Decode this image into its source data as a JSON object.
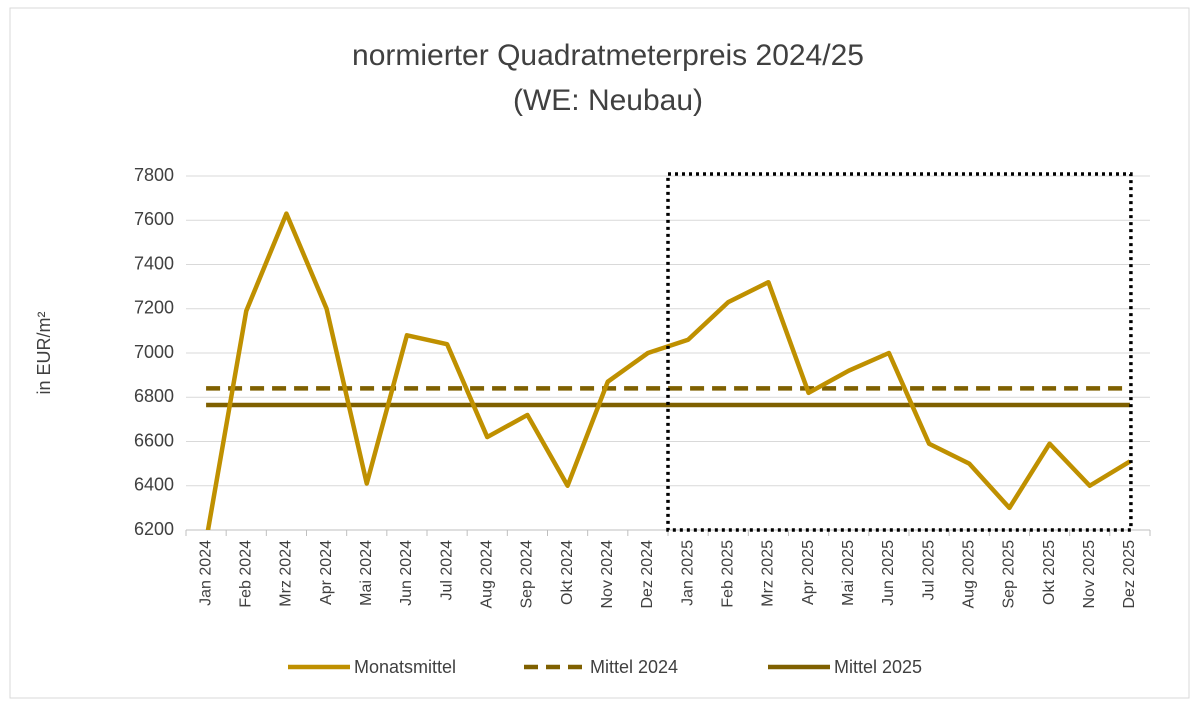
{
  "chart_data": {
    "type": "line",
    "title": "normierter Quadratmeterpreis 2024/25",
    "subtitle": "(WE: Neubau)",
    "y_label": "in EUR/m²",
    "categories": [
      "Jan 2024",
      "Feb 2024",
      "Mrz 2024",
      "Apr 2024",
      "Mai 2024",
      "Jun 2024",
      "Jul 2024",
      "Aug 2024",
      "Sep 2024",
      "Okt 2024",
      "Nov 2024",
      "Dez 2024",
      "Jan 2025",
      "Feb 2025",
      "Mrz 2025",
      "Apr 2025",
      "Mai 2025",
      "Jun 2025",
      "Jul 2025",
      "Aug 2025",
      "Sep 2025",
      "Okt 2025",
      "Nov 2025",
      "Dez 2025"
    ],
    "series": [
      {
        "name": "Monatsmittel",
        "color": "#bf9000",
        "dash": false,
        "values": [
          6150,
          7190,
          7630,
          7200,
          6410,
          7080,
          7040,
          6620,
          6720,
          6400,
          6870,
          7000,
          7060,
          7230,
          7320,
          6820,
          6920,
          7000,
          6590,
          6500,
          6300,
          6590,
          6400,
          6510
        ]
      },
      {
        "name": "Mittel 2024",
        "color": "#7f6000",
        "dash": true,
        "values": [
          6840,
          6840,
          6840,
          6840,
          6840,
          6840,
          6840,
          6840,
          6840,
          6840,
          6840,
          6840,
          6840,
          6840,
          6840,
          6840,
          6840,
          6840,
          6840,
          6840,
          6840,
          6840,
          6840,
          6840
        ]
      },
      {
        "name": "Mittel 2025",
        "color": "#7f6000",
        "dash": false,
        "values": [
          6765,
          6765,
          6765,
          6765,
          6765,
          6765,
          6765,
          6765,
          6765,
          6765,
          6765,
          6765,
          6765,
          6765,
          6765,
          6765,
          6765,
          6765,
          6765,
          6765,
          6765,
          6765,
          6765,
          6765
        ]
      }
    ],
    "ylim": [
      6200,
      7800
    ],
    "yticks": [
      6200,
      6400,
      6600,
      6800,
      7000,
      7200,
      7400,
      7600,
      7800
    ],
    "grid": true,
    "legend": "bottom"
  }
}
